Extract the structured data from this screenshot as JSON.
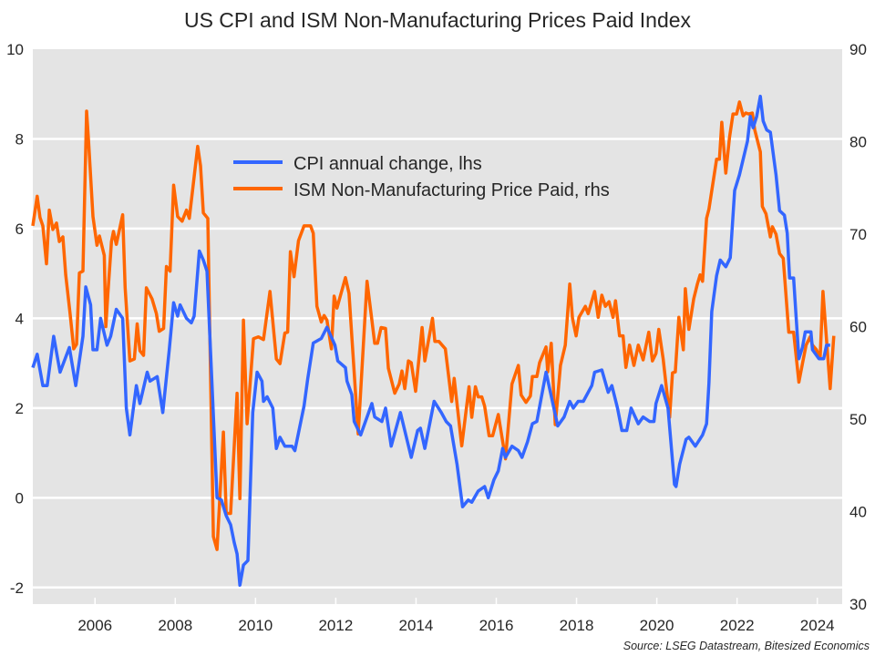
{
  "chart_data": {
    "type": "line",
    "title": "US CPI and ISM Non-Manufacturing Prices Paid Index",
    "source": "Source: LSEG Datastream, Bitesized Economics",
    "xlabel": "",
    "ylabel_left": "",
    "ylabel_right": "",
    "xlim": [
      2004.45,
      2024.62
    ],
    "ylim_left": [
      -2.37,
      10
    ],
    "ylim_right": [
      30,
      90
    ],
    "x_ticks": [
      2006,
      2008,
      2010,
      2012,
      2014,
      2016,
      2018,
      2020,
      2022,
      2024
    ],
    "x_tick_labels": [
      "2006",
      "2008",
      "2010",
      "2012",
      "2014",
      "2016",
      "2018",
      "2020",
      "2022",
      "2024"
    ],
    "y_left_ticks": [
      -2,
      0,
      2,
      4,
      6,
      8,
      10
    ],
    "y_left_tick_labels": [
      "-2",
      "0",
      "2",
      "4",
      "6",
      "8",
      "10"
    ],
    "y_right_ticks": [
      30,
      40,
      50,
      60,
      70,
      80,
      90
    ],
    "y_right_tick_labels": [
      "30",
      "40",
      "50",
      "60",
      "70",
      "80",
      "90"
    ],
    "grid": true,
    "legend_position": "top-center",
    "series": [
      {
        "name": "CPI annual change, lhs",
        "axis": "left",
        "color": "#3366ff",
        "x": [
          2004.45,
          2004.56,
          2004.7,
          2004.81,
          2004.97,
          2005.13,
          2005.36,
          2005.52,
          2005.7,
          2005.77,
          2005.89,
          2005.95,
          2006.05,
          2006.14,
          2006.3,
          2006.39,
          2006.53,
          2006.69,
          2006.78,
          2006.87,
          2007.03,
          2007.12,
          2007.3,
          2007.37,
          2007.55,
          2007.69,
          2007.85,
          2007.96,
          2008.06,
          2008.12,
          2008.28,
          2008.4,
          2008.47,
          2008.6,
          2008.7,
          2008.79,
          2009.04,
          2009.15,
          2009.27,
          2009.38,
          2009.47,
          2009.54,
          2009.61,
          2009.7,
          2009.81,
          2009.93,
          2010.04,
          2010.16,
          2010.2,
          2010.29,
          2010.43,
          2010.52,
          2010.61,
          2010.73,
          2010.91,
          2010.98,
          2011.21,
          2011.3,
          2011.44,
          2011.64,
          2011.78,
          2011.98,
          2012.05,
          2012.24,
          2012.28,
          2012.4,
          2012.46,
          2012.62,
          2012.9,
          2012.97,
          2013.15,
          2013.24,
          2013.38,
          2013.61,
          2013.88,
          2014.04,
          2014.11,
          2014.22,
          2014.45,
          2014.63,
          2014.75,
          2014.86,
          2015.02,
          2015.16,
          2015.3,
          2015.39,
          2015.55,
          2015.71,
          2015.8,
          2015.94,
          2016.05,
          2016.16,
          2016.23,
          2016.39,
          2016.55,
          2016.64,
          2016.78,
          2016.9,
          2017.01,
          2017.24,
          2017.35,
          2017.53,
          2017.69,
          2017.83,
          2017.92,
          2018.04,
          2018.17,
          2018.38,
          2018.45,
          2018.63,
          2018.79,
          2018.88,
          2019.02,
          2019.13,
          2019.25,
          2019.36,
          2019.54,
          2019.66,
          2019.82,
          2019.93,
          2019.98,
          2020.12,
          2020.28,
          2020.44,
          2020.48,
          2020.57,
          2020.73,
          2020.8,
          2020.96,
          2021.14,
          2021.24,
          2021.3,
          2021.37,
          2021.49,
          2021.58,
          2021.72,
          2021.83,
          2021.94,
          2022.06,
          2022.26,
          2022.33,
          2022.4,
          2022.49,
          2022.58,
          2022.65,
          2022.74,
          2022.83,
          2022.97,
          2023.06,
          2023.18,
          2023.25,
          2023.31,
          2023.41,
          2023.47,
          2023.54,
          2023.63,
          2023.7,
          2023.84,
          2023.88,
          2024.04,
          2024.16,
          2024.23,
          2024.32
        ],
        "y": [
          2.9,
          3.2,
          2.5,
          2.5,
          3.6,
          2.8,
          3.35,
          2.5,
          3.6,
          4.7,
          4.3,
          3.3,
          3.3,
          4.0,
          3.4,
          3.6,
          4.2,
          4.0,
          2.0,
          1.4,
          2.5,
          2.1,
          2.8,
          2.6,
          2.7,
          1.9,
          3.3,
          4.35,
          4.05,
          4.3,
          4.0,
          3.9,
          4.05,
          5.5,
          5.3,
          5.05,
          0.0,
          -0.05,
          -0.4,
          -0.6,
          -1.0,
          -1.25,
          -1.95,
          -1.5,
          -1.4,
          1.9,
          2.8,
          2.6,
          2.15,
          2.25,
          2.0,
          1.1,
          1.35,
          1.15,
          1.15,
          1.05,
          2.05,
          2.65,
          3.45,
          3.55,
          3.8,
          3.4,
          3.05,
          2.9,
          2.6,
          2.3,
          1.7,
          1.4,
          2.1,
          1.8,
          1.7,
          2.0,
          1.15,
          1.9,
          0.9,
          1.5,
          1.55,
          1.1,
          2.15,
          1.9,
          1.7,
          1.6,
          0.75,
          -0.2,
          -0.05,
          -0.1,
          0.15,
          0.25,
          0.0,
          0.4,
          0.6,
          1.1,
          0.9,
          1.15,
          1.05,
          0.9,
          1.25,
          1.65,
          1.7,
          2.8,
          2.35,
          1.6,
          1.8,
          2.15,
          2.0,
          2.15,
          2.15,
          2.5,
          2.8,
          2.85,
          2.35,
          2.5,
          2.0,
          1.5,
          1.5,
          2.0,
          1.65,
          1.8,
          1.7,
          1.7,
          2.1,
          2.5,
          2.0,
          0.3,
          0.25,
          0.75,
          1.3,
          1.35,
          1.15,
          1.4,
          1.65,
          2.55,
          4.15,
          4.95,
          5.3,
          5.15,
          5.35,
          6.85,
          7.2,
          7.95,
          8.5,
          8.25,
          8.5,
          8.95,
          8.4,
          8.2,
          8.15,
          7.2,
          6.4,
          6.3,
          5.9,
          4.9,
          4.9,
          4.05,
          3.1,
          3.35,
          3.7,
          3.7,
          3.3,
          3.1,
          3.1,
          3.4,
          3.4
        ]
      },
      {
        "name": "ISM Non-Manufacturing Price Paid, rhs",
        "axis": "right",
        "color": "#ff6600",
        "x": [
          2004.45,
          2004.56,
          2004.63,
          2004.7,
          2004.79,
          2004.86,
          2004.95,
          2005.04,
          2005.11,
          2005.2,
          2005.27,
          2005.38,
          2005.47,
          2005.54,
          2005.61,
          2005.7,
          2005.79,
          2005.84,
          2005.95,
          2006.05,
          2006.11,
          2006.23,
          2006.27,
          2006.32,
          2006.41,
          2006.46,
          2006.53,
          2006.69,
          2006.75,
          2006.87,
          2006.98,
          2007.05,
          2007.12,
          2007.21,
          2007.28,
          2007.42,
          2007.53,
          2007.6,
          2007.71,
          2007.78,
          2007.87,
          2007.96,
          2008.06,
          2008.17,
          2008.28,
          2008.35,
          2008.56,
          2008.63,
          2008.7,
          2008.81,
          2008.95,
          2009.04,
          2009.2,
          2009.27,
          2009.38,
          2009.54,
          2009.61,
          2009.7,
          2009.79,
          2009.95,
          2010.07,
          2010.2,
          2010.36,
          2010.52,
          2010.61,
          2010.73,
          2010.8,
          2010.87,
          2010.96,
          2011.07,
          2011.21,
          2011.37,
          2011.44,
          2011.53,
          2011.64,
          2011.71,
          2011.78,
          2011.89,
          2011.96,
          2012.03,
          2012.24,
          2012.33,
          2012.56,
          2012.74,
          2012.78,
          2012.9,
          2012.97,
          2013.04,
          2013.13,
          2013.24,
          2013.31,
          2013.47,
          2013.58,
          2013.65,
          2013.72,
          2013.81,
          2013.88,
          2013.99,
          2014.15,
          2014.22,
          2014.41,
          2014.47,
          2014.57,
          2014.73,
          2014.89,
          2014.95,
          2015.14,
          2015.32,
          2015.39,
          2015.48,
          2015.55,
          2015.64,
          2015.71,
          2015.82,
          2015.91,
          2016.05,
          2016.23,
          2016.39,
          2016.55,
          2016.62,
          2016.74,
          2016.85,
          2016.9,
          2017.01,
          2017.08,
          2017.24,
          2017.28,
          2017.37,
          2017.47,
          2017.6,
          2017.72,
          2017.83,
          2017.9,
          2017.99,
          2018.06,
          2018.22,
          2018.29,
          2018.45,
          2018.54,
          2018.63,
          2018.72,
          2018.81,
          2018.91,
          2018.97,
          2019.07,
          2019.16,
          2019.23,
          2019.32,
          2019.43,
          2019.54,
          2019.66,
          2019.8,
          2019.89,
          2019.98,
          2020.05,
          2020.16,
          2020.32,
          2020.39,
          2020.46,
          2020.55,
          2020.66,
          2020.71,
          2020.8,
          2020.92,
          2021.01,
          2021.08,
          2021.14,
          2021.24,
          2021.3,
          2021.49,
          2021.56,
          2021.62,
          2021.72,
          2021.81,
          2021.9,
          2021.99,
          2022.06,
          2022.15,
          2022.22,
          2022.29,
          2022.38,
          2022.44,
          2022.58,
          2022.63,
          2022.72,
          2022.83,
          2022.88,
          2022.97,
          2023.06,
          2023.15,
          2023.29,
          2023.41,
          2023.54,
          2023.63,
          2023.72,
          2023.82,
          2023.88,
          2023.98,
          2024.07,
          2024.14,
          2024.32,
          2024.41
        ],
        "y": [
          70.9,
          74.1,
          71.8,
          70.9,
          66.8,
          72.6,
          70.5,
          71.2,
          69.2,
          69.7,
          65.6,
          61.4,
          57.6,
          58.1,
          65.8,
          66.0,
          83.3,
          80.0,
          71.9,
          68.8,
          69.8,
          67.7,
          60.0,
          63.5,
          69.2,
          70.3,
          68.9,
          72.1,
          64.2,
          56.3,
          56.5,
          60.3,
          57.4,
          56.9,
          64.2,
          63.0,
          61.4,
          59.5,
          59.8,
          66.5,
          66.0,
          75.3,
          71.9,
          71.4,
          72.6,
          71.7,
          79.5,
          77.4,
          72.3,
          71.7,
          37.3,
          35.9,
          48.6,
          39.8,
          39.8,
          52.8,
          41.4,
          60.7,
          49.5,
          58.7,
          58.9,
          58.6,
          63.8,
          56.5,
          56.0,
          59.3,
          59.4,
          68.1,
          65.4,
          69.3,
          70.9,
          70.9,
          70.1,
          62.2,
          60.5,
          61.2,
          60.7,
          57.6,
          63.3,
          62.0,
          65.3,
          63.6,
          48.4,
          62.0,
          64.9,
          60.7,
          58.2,
          58.2,
          59.9,
          59.8,
          55.5,
          52.8,
          53.8,
          55.2,
          53.3,
          56.3,
          56.1,
          53.0,
          59.9,
          56.3,
          60.9,
          58.4,
          58.4,
          57.6,
          51.9,
          54.4,
          47.1,
          53.5,
          50.2,
          53.5,
          52.4,
          52.4,
          51.4,
          48.2,
          48.2,
          50.5,
          45.7,
          53.8,
          55.8,
          52.6,
          51.8,
          52.5,
          54.6,
          54.6,
          56.1,
          57.8,
          55.1,
          58.2,
          49.4,
          55.8,
          58.0,
          64.6,
          60.9,
          59.0,
          61.0,
          62.2,
          61.4,
          63.8,
          61.0,
          63.4,
          62.2,
          62.7,
          61.0,
          62.8,
          59.0,
          59.0,
          55.6,
          58.0,
          55.8,
          58.0,
          56.4,
          59.4,
          56.3,
          57.1,
          59.7,
          56.5,
          50.2,
          55.0,
          55.1,
          61.0,
          57.5,
          64.1,
          59.7,
          63.0,
          64.6,
          65.6,
          64.9,
          71.7,
          72.7,
          78.1,
          78.1,
          82.1,
          76.6,
          80.4,
          83.0,
          83.0,
          84.3,
          82.8,
          83.1,
          83.0,
          83.1,
          81.3,
          78.9,
          73.0,
          72.2,
          69.7,
          70.8,
          70.0,
          67.9,
          67.4,
          59.4,
          59.4,
          54.0,
          56.0,
          58.0,
          58.9,
          58.0,
          57.5,
          56.6,
          63.8,
          53.3,
          59.0
        ]
      }
    ]
  }
}
